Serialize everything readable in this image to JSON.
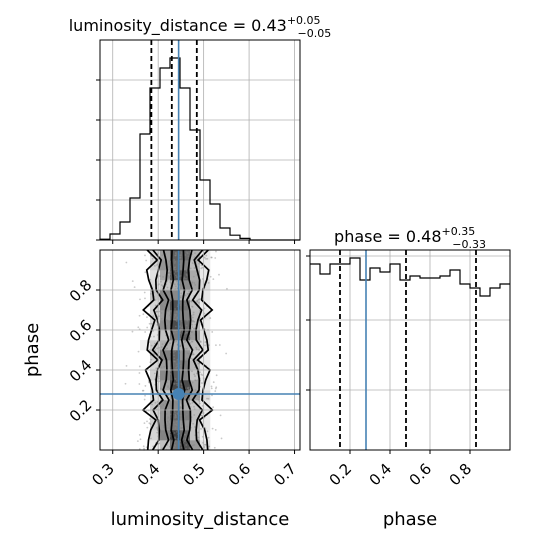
{
  "chart_data": [
    {
      "type": "histogram",
      "panel": "marginal-luminosity_distance",
      "title_main": "luminosity_distance = 0.43",
      "title_sup": "+0.05",
      "title_sub": "−0.05",
      "xlim": [
        0.272,
        0.712
      ],
      "bin_edges": [
        0.272,
        0.294,
        0.316,
        0.338,
        0.36,
        0.382,
        0.404,
        0.426,
        0.448,
        0.47,
        0.492,
        0.514,
        0.536,
        0.558,
        0.58,
        0.602,
        0.624,
        0.646,
        0.668,
        0.69,
        0.712
      ],
      "counts": [
        0.004,
        0.03,
        0.09,
        0.21,
        0.53,
        0.76,
        0.86,
        0.91,
        0.76,
        0.55,
        0.3,
        0.18,
        0.06,
        0.024,
        0.008,
        0,
        0,
        0,
        0,
        0
      ],
      "quantiles": [
        0.385,
        0.43,
        0.485
      ],
      "truth": 0.445
    },
    {
      "type": "scatter+contour",
      "panel": "joint-luminosity_distance-phase",
      "xlabel": "luminosity_distance",
      "ylabel": "phase",
      "xlim": [
        0.272,
        0.712
      ],
      "ylim": [
        0.0,
        1.0
      ],
      "xticks": [
        "0.3",
        "0.4",
        "0.5",
        "0.6",
        "0.7"
      ],
      "yticks": [
        "0.2",
        "0.4",
        "0.6",
        "0.8"
      ],
      "contour_levels": [
        {
          "name": "level-1",
          "half_width": 0.06
        },
        {
          "name": "level-2",
          "half_width": 0.044
        },
        {
          "name": "level-3",
          "half_width": 0.026
        },
        {
          "name": "level-4",
          "half_width": 0.012
        }
      ],
      "truth": {
        "x": 0.445,
        "y": 0.28
      }
    },
    {
      "type": "histogram",
      "panel": "marginal-phase",
      "title_main": "phase = 0.48",
      "title_sup": "+0.35",
      "title_sub": "−0.33",
      "xlabel": "phase",
      "xlim": [
        0.0,
        1.0
      ],
      "xticks": [
        "0.2",
        "0.4",
        "0.6",
        "0.8"
      ],
      "bin_edges": [
        0.0,
        0.05,
        0.1,
        0.15,
        0.2,
        0.25,
        0.3,
        0.35,
        0.4,
        0.45,
        0.5,
        0.55,
        0.6,
        0.65,
        0.7,
        0.75,
        0.8,
        0.85,
        0.9,
        0.95,
        1.0
      ],
      "counts": [
        0.93,
        0.88,
        0.93,
        0.93,
        0.96,
        0.85,
        0.91,
        0.89,
        0.93,
        0.85,
        0.87,
        0.86,
        0.86,
        0.87,
        0.9,
        0.83,
        0.81,
        0.77,
        0.81,
        0.83
      ],
      "ylim": [
        0.0,
        1.0
      ],
      "quantiles": [
        0.15,
        0.48,
        0.83
      ],
      "truth": 0.28
    }
  ]
}
